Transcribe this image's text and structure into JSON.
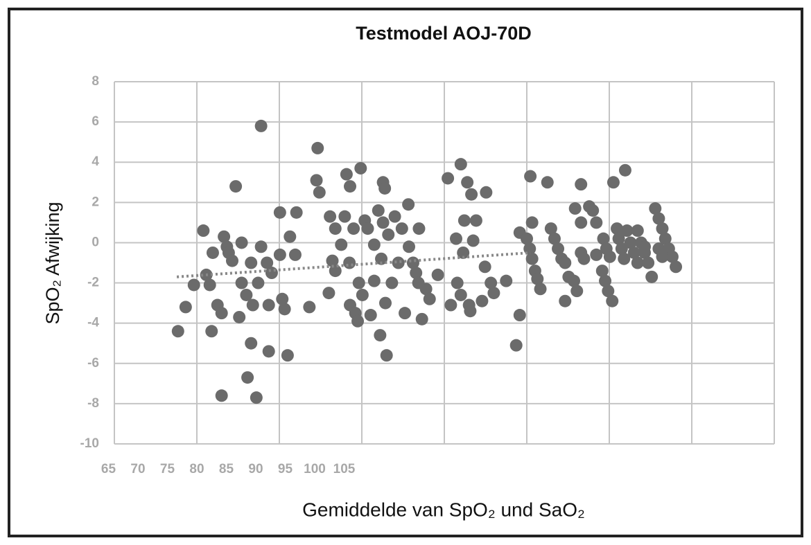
{
  "chart_data": {
    "type": "scatter",
    "title": "Testmodel AOJ-70D",
    "ylabel": "SpO₂ Afwijking",
    "xlabel": "Gemiddelde van SpO₂ und SaO₂",
    "color": "#6b6b6b",
    "grid": true,
    "xlim": [
      66,
      178
    ],
    "ylim": [
      -10,
      8
    ],
    "xticks": [
      65,
      70,
      75,
      80,
      85,
      90,
      95,
      100,
      105
    ],
    "yticks": [
      -10,
      -8,
      -6,
      -4,
      -2,
      0,
      2,
      4,
      6,
      8
    ],
    "xgrid": [
      66,
      80,
      94,
      108,
      122,
      136,
      150,
      164,
      178
    ],
    "x": [
      76.8,
      78.1,
      79.5,
      81.1,
      81.6,
      82.2,
      82.5,
      82.7,
      83.5,
      84.2,
      84.2,
      84.6,
      85.1,
      85.4,
      86,
      86.6,
      87.2,
      87.6,
      87.6,
      88.4,
      88.6,
      89.2,
      89.2,
      89.5,
      90.1,
      90.4,
      90.9,
      90.9,
      91.9,
      92.2,
      92.2,
      92.7,
      94.1,
      94.1,
      94.5,
      94.9,
      95.4,
      95.8,
      96.7,
      96.9,
      99.1,
      100.5,
      100.3,
      100.8,
      102.4,
      102.6,
      103,
      103.5,
      103.5,
      104.5,
      105.4,
      105.1,
      105.9,
      106,
      106,
      106.6,
      106.9,
      107.3,
      107.8,
      107.5,
      108.1,
      108.5,
      109,
      109.5,
      110.1,
      110.1,
      110.8,
      111.1,
      111.3,
      111.6,
      111.9,
      111.6,
      112,
      112.2,
      112.5,
      113.1,
      113.6,
      114.2,
      114.8,
      115.3,
      115.9,
      116,
      116.7,
      117.2,
      117.6,
      118.2,
      117.7,
      118.9,
      119.5,
      120.9,
      122.6,
      123.1,
      124,
      124.2,
      124.8,
      124.8,
      125.2,
      125.4,
      125.9,
      126.2,
      126.4,
      126.6,
      126.9,
      127.4,
      128.4,
      128.9,
      129.1,
      129.9,
      130.4,
      132.5,
      134.2,
      134.8,
      134.8,
      136.6,
      136,
      136.5,
      136.9,
      137.4,
      137.8,
      138.3,
      136.9,
      139.5,
      140.1,
      140.7,
      141.3,
      141.9,
      142.5,
      143.1,
      142.5,
      144,
      144.5,
      144.2,
      145.2,
      145.2,
      145.2,
      145.7,
      146.6,
      147.2,
      147.8,
      147.8,
      148.8,
      149.3,
      149.8,
      150.5,
      149,
      149.5,
      150.1,
      150.7,
      151.3,
      151.6,
      152.1,
      152.5,
      152.7,
      153,
      153.6,
      154.2,
      154.8,
      154.8,
      155.4,
      156,
      156.6,
      157.2,
      157.8,
      158.4,
      159,
      159.5,
      160.1,
      160.7,
      161.3,
      158.4,
      159,
      156
    ],
    "y": [
      -4.4,
      -3.2,
      -2.1,
      0.6,
      -1.6,
      -2.1,
      -4.4,
      -0.5,
      -3.1,
      -3.5,
      -7.6,
      0.3,
      -0.2,
      -0.5,
      -0.9,
      2.8,
      -3.7,
      0,
      -2,
      -2.6,
      -6.7,
      -5,
      -1,
      -3.1,
      -7.7,
      -2,
      5.8,
      -0.2,
      -1,
      -3.1,
      -5.4,
      -1.5,
      1.5,
      -0.6,
      -2.8,
      -3.3,
      -5.6,
      0.3,
      -0.6,
      1.5,
      -3.2,
      4.7,
      3.1,
      2.5,
      -2.5,
      1.3,
      -0.9,
      0.7,
      -1.4,
      -0.1,
      3.4,
      1.3,
      -1,
      2.8,
      -3.1,
      0.7,
      -3.5,
      -3.9,
      3.7,
      -2,
      -2.6,
      1.1,
      0.7,
      -3.6,
      -0.1,
      -1.9,
      1.6,
      -4.6,
      -0.8,
      3,
      2.7,
      1,
      -3,
      -5.6,
      0.4,
      -2,
      1.3,
      -1,
      0.7,
      -3.5,
      1.9,
      -0.2,
      -1,
      -1.5,
      -2,
      -3.8,
      0.7,
      -2.3,
      -2.8,
      -1.6,
      3.2,
      -3.1,
      0.2,
      -2,
      3.9,
      -2.6,
      -0.5,
      1.1,
      3,
      -3.1,
      -3.4,
      2.4,
      0.1,
      1.1,
      -2.9,
      -1.2,
      2.5,
      -2,
      -2.5,
      -1.9,
      -5.1,
      0.5,
      -3.6,
      3.3,
      0.2,
      -0.3,
      -0.8,
      -1.4,
      -1.8,
      -2.3,
      1,
      3,
      0.7,
      0.2,
      -0.3,
      -0.8,
      -1,
      -1.7,
      -2.9,
      -1.9,
      -2.4,
      1.7,
      2.9,
      1,
      -0.5,
      -0.8,
      1.8,
      1.6,
      1,
      -0.6,
      -1.4,
      -1.9,
      -2.4,
      -2.9,
      0.2,
      -0.3,
      -0.7,
      3,
      0.7,
      0.2,
      -0.3,
      -0.8,
      3.6,
      0.6,
      0,
      -0.5,
      -1,
      0.6,
      0,
      -0.5,
      -1,
      -1.7,
      1.7,
      1.2,
      0.7,
      0.2,
      -0.3,
      -0.7,
      -1.2,
      -0.3,
      -0.7,
      -0.2
    ],
    "trendline": {
      "x": [
        76.6,
        136.6
      ],
      "y": [
        -1.7,
        -0.5
      ],
      "color": "#888888"
    }
  }
}
